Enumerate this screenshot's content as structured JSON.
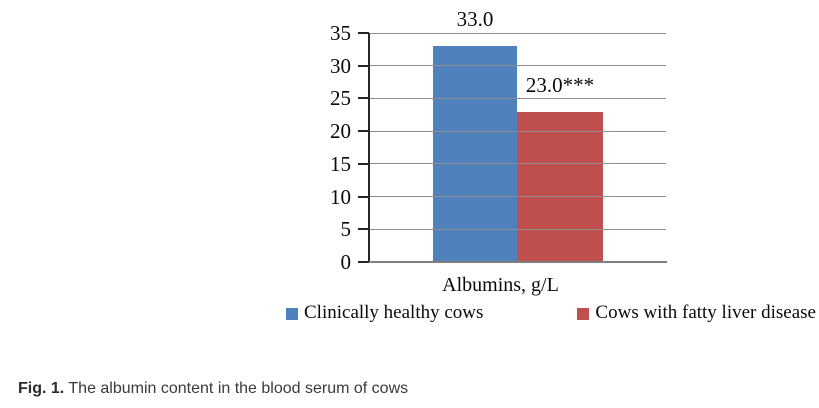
{
  "chart_data": {
    "type": "bar",
    "title": "",
    "categories": [
      "Albumins, g/L"
    ],
    "series": [
      {
        "name": "Clinically healthy cows",
        "values": [
          33.0
        ],
        "data_label": "33.0",
        "color": "#4F81BD"
      },
      {
        "name": "Cows with fatty liver disease",
        "values": [
          23.0
        ],
        "data_label": "23.0***",
        "color": "#C0504D"
      }
    ],
    "xlabel": "Albumins, g/L",
    "ylabel": "",
    "ylim": [
      0,
      35
    ],
    "yticks": [
      0,
      5,
      10,
      15,
      20,
      25,
      30,
      35
    ],
    "grid": "horizontal",
    "gridline_color": "#8F8F8F",
    "axis_line_color": "#7F7F7F",
    "legend_position": "bottom"
  },
  "caption": {
    "prefix": "Fig. 1.",
    "text": "The albumin content in the blood serum of cows"
  }
}
